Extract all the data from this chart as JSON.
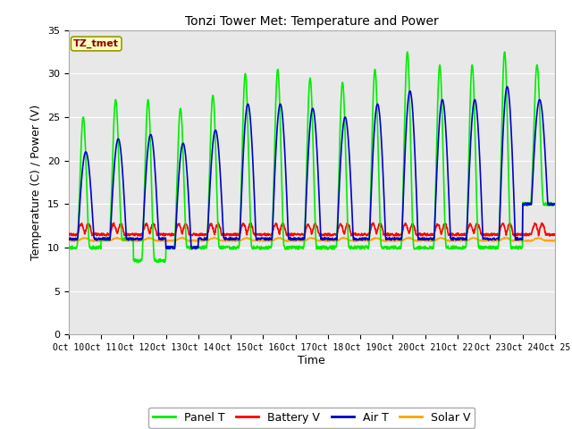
{
  "title": "Tonzi Tower Met: Temperature and Power",
  "xlabel": "Time",
  "ylabel": "Temperature (C) / Power (V)",
  "ylim": [
    0,
    35
  ],
  "yticks": [
    0,
    5,
    10,
    15,
    20,
    25,
    30,
    35
  ],
  "xtick_labels": [
    "Oct 10",
    "Oct 11",
    "Oct 12",
    "Oct 13",
    "Oct 14",
    "Oct 15",
    "Oct 16",
    "Oct 17",
    "Oct 18",
    "Oct 19",
    "Oct 20",
    "Oct 21",
    "Oct 22",
    "Oct 23",
    "Oct 24",
    "Oct 25"
  ],
  "annotation_text": "TZ_tmet",
  "annotation_color": "#8B0000",
  "annotation_bg": "#FFFFC0",
  "annotation_edge": "#999900",
  "bg_inner": "#E8E8E8",
  "bg_outer": "#FFFFFF",
  "colors": {
    "panel_t": "#00EE00",
    "battery_v": "#FF0000",
    "air_t": "#0000CC",
    "solar_v": "#FFA500"
  },
  "legend_labels": [
    "Panel T",
    "Battery V",
    "Air T",
    "Solar V"
  ],
  "panel_peaks": [
    25,
    27,
    27,
    26,
    27.5,
    30,
    30.5,
    29.5,
    29,
    30.5,
    32.5,
    31,
    31,
    32.5,
    31
  ],
  "panel_mins": [
    10,
    11,
    8.5,
    10,
    10,
    10,
    10,
    10,
    10,
    10,
    10,
    10,
    10,
    10,
    15
  ],
  "air_peaks": [
    21,
    22.5,
    23,
    22,
    23.5,
    26.5,
    26.5,
    26,
    25,
    26.5,
    28,
    27,
    27,
    28.5,
    27
  ],
  "air_mins": [
    11,
    11,
    11,
    10,
    11,
    11,
    11,
    11,
    11,
    11,
    11,
    11,
    11,
    11,
    15
  ],
  "battery_base": 11.5,
  "battery_peak_add": 1.2,
  "solar_base": 10.8,
  "solar_peak_add": 0.3,
  "n_days": 15,
  "pts_per_day": 96
}
